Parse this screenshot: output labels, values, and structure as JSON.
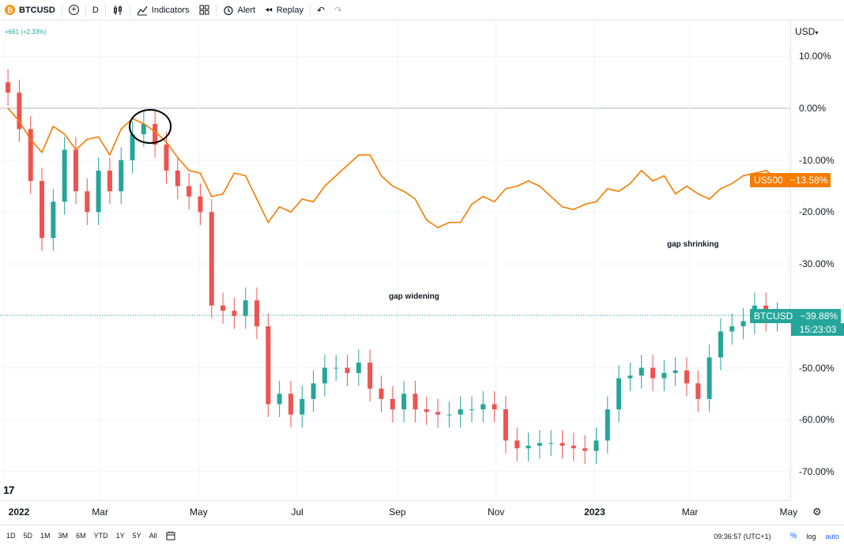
{
  "toolbar": {
    "symbol": "BTCUSD",
    "btc_glyph": "₿",
    "interval": "D",
    "indicators_label": "Indicators",
    "alert_label": "Alert",
    "replay_label": "Replay"
  },
  "legend": {
    "change": "+661 (+2.33%)"
  },
  "price_axis": {
    "currency": "USD",
    "ticks": [
      "10.00%",
      "0.00%",
      "-10.00%",
      "-20.00%",
      "-30.00%",
      "-40.00%",
      "-50.00%",
      "-60.00%",
      "-70.00%"
    ],
    "us500_label": "US500",
    "us500_value": "−13.58%",
    "btc_label": "BTCUSD",
    "btc_value": "−39.88%",
    "btc_countdown": "15:23:03"
  },
  "time_axis": [
    "2022",
    "Mar",
    "May",
    "Jul",
    "Sep",
    "Nov",
    "2023",
    "Mar",
    "May"
  ],
  "annotations": {
    "widening": "gap widening",
    "shrinking": "gap shrinking"
  },
  "bottom_bar": {
    "ranges": [
      "1D",
      "5D",
      "1M",
      "3M",
      "6M",
      "YTD",
      "1Y",
      "5Y",
      "All"
    ],
    "clock": "09:36:57 (UTC+1)",
    "percent": "%",
    "log": "log",
    "auto": "auto"
  },
  "colors": {
    "us500": "#f57c00",
    "btc_up": "#26a69a",
    "btc_down": "#ef5350",
    "grid": "#f0f3fa"
  },
  "chart_data": {
    "type": "line",
    "ylabel": "",
    "ylim": [
      -75,
      15
    ],
    "y_unit": "%",
    "series": [
      {
        "name": "US500",
        "x": [
          "2022-01-03",
          "2022-01-10",
          "2022-01-17",
          "2022-01-24",
          "2022-01-31",
          "2022-02-07",
          "2022-02-14",
          "2022-02-21",
          "2022-02-28",
          "2022-03-07",
          "2022-03-14",
          "2022-03-21",
          "2022-03-28",
          "2022-04-04",
          "2022-04-11",
          "2022-04-18",
          "2022-04-25",
          "2022-05-02",
          "2022-05-09",
          "2022-05-16",
          "2022-05-23",
          "2022-05-30",
          "2022-06-06",
          "2022-06-13",
          "2022-06-20",
          "2022-06-27",
          "2022-07-04",
          "2022-07-11",
          "2022-07-18",
          "2022-07-25",
          "2022-08-01",
          "2022-08-08",
          "2022-08-15",
          "2022-08-22",
          "2022-08-29",
          "2022-09-05",
          "2022-09-12",
          "2022-09-19",
          "2022-09-26",
          "2022-10-03",
          "2022-10-10",
          "2022-10-17",
          "2022-10-24",
          "2022-10-31",
          "2022-11-07",
          "2022-11-14",
          "2022-11-21",
          "2022-11-28",
          "2022-12-05",
          "2022-12-12",
          "2022-12-19",
          "2022-12-26",
          "2023-01-02",
          "2023-01-09",
          "2023-01-16",
          "2023-01-23",
          "2023-01-30",
          "2023-02-06",
          "2023-02-13",
          "2023-02-20",
          "2023-02-27",
          "2023-03-06",
          "2023-03-13",
          "2023-03-20",
          "2023-03-27",
          "2023-04-03",
          "2023-04-10",
          "2023-04-17",
          "2023-04-24"
        ],
        "values": [
          0.0,
          -2.5,
          -6.0,
          -8.5,
          -3.5,
          -5.0,
          -8.0,
          -6.0,
          -5.5,
          -9.0,
          -4.0,
          -2.0,
          -3.0,
          -4.5,
          -6.5,
          -9.5,
          -12.0,
          -12.5,
          -17.0,
          -16.5,
          -12.5,
          -13.0,
          -17.5,
          -22.0,
          -19.0,
          -20.0,
          -17.5,
          -18.0,
          -15.0,
          -13.0,
          -11.0,
          -9.0,
          -9.0,
          -13.0,
          -15.0,
          -16.0,
          -17.5,
          -21.5,
          -23.0,
          -22.0,
          -22.0,
          -18.5,
          -17.0,
          -18.0,
          -15.5,
          -15.0,
          -14.0,
          -15.0,
          -17.0,
          -19.0,
          -19.5,
          -18.5,
          -18.0,
          -15.5,
          -16.0,
          -14.5,
          -12.0,
          -14.0,
          -13.0,
          -16.5,
          -15.0,
          -16.5,
          -17.5,
          -15.5,
          -14.5,
          -13.0,
          -12.5,
          -12.0,
          -13.58
        ]
      },
      {
        "name": "BTCUSD",
        "x": [
          "2022-01-03",
          "2022-01-10",
          "2022-01-17",
          "2022-01-24",
          "2022-01-31",
          "2022-02-07",
          "2022-02-14",
          "2022-02-21",
          "2022-02-28",
          "2022-03-07",
          "2022-03-14",
          "2022-03-21",
          "2022-03-28",
          "2022-04-04",
          "2022-04-11",
          "2022-04-18",
          "2022-04-25",
          "2022-05-02",
          "2022-05-09",
          "2022-05-16",
          "2022-05-23",
          "2022-05-30",
          "2022-06-06",
          "2022-06-13",
          "2022-06-20",
          "2022-06-27",
          "2022-07-04",
          "2022-07-11",
          "2022-07-18",
          "2022-07-25",
          "2022-08-01",
          "2022-08-08",
          "2022-08-15",
          "2022-08-22",
          "2022-08-29",
          "2022-09-05",
          "2022-09-12",
          "2022-09-19",
          "2022-09-26",
          "2022-10-03",
          "2022-10-10",
          "2022-10-17",
          "2022-10-24",
          "2022-10-31",
          "2022-11-07",
          "2022-11-14",
          "2022-11-21",
          "2022-11-28",
          "2022-12-05",
          "2022-12-12",
          "2022-12-19",
          "2022-12-26",
          "2023-01-02",
          "2023-01-09",
          "2023-01-16",
          "2023-01-23",
          "2023-01-30",
          "2023-02-06",
          "2023-02-13",
          "2023-02-20",
          "2023-02-27",
          "2023-03-06",
          "2023-03-13",
          "2023-03-20",
          "2023-03-27",
          "2023-04-03",
          "2023-04-10",
          "2023-04-17",
          "2023-04-24"
        ],
        "values": [
          3.0,
          -4.0,
          -14.0,
          -25.0,
          -18.0,
          -8.0,
          -16.0,
          -20.0,
          -12.0,
          -16.0,
          -10.0,
          -5.0,
          -3.0,
          -7.0,
          -12.0,
          -15.0,
          -17.0,
          -20.0,
          -38.0,
          -39.0,
          -40.0,
          -37.0,
          -42.0,
          -57.0,
          -55.0,
          -59.0,
          -56.0,
          -53.0,
          -50.0,
          -50.0,
          -51.0,
          -49.0,
          -54.0,
          -56.0,
          -58.0,
          -55.0,
          -58.0,
          -58.5,
          -59.0,
          -59.0,
          -58.0,
          -58.0,
          -57.0,
          -58.0,
          -64.0,
          -65.5,
          -65.0,
          -64.5,
          -64.5,
          -65.0,
          -65.5,
          -66.0,
          -64.0,
          -58.0,
          -52.0,
          -51.5,
          -50.0,
          -52.0,
          -51.0,
          -50.5,
          -53.0,
          -56.0,
          -48.0,
          -43.0,
          -42.0,
          -41.0,
          -38.0,
          -40.5,
          -39.88
        ]
      }
    ]
  }
}
